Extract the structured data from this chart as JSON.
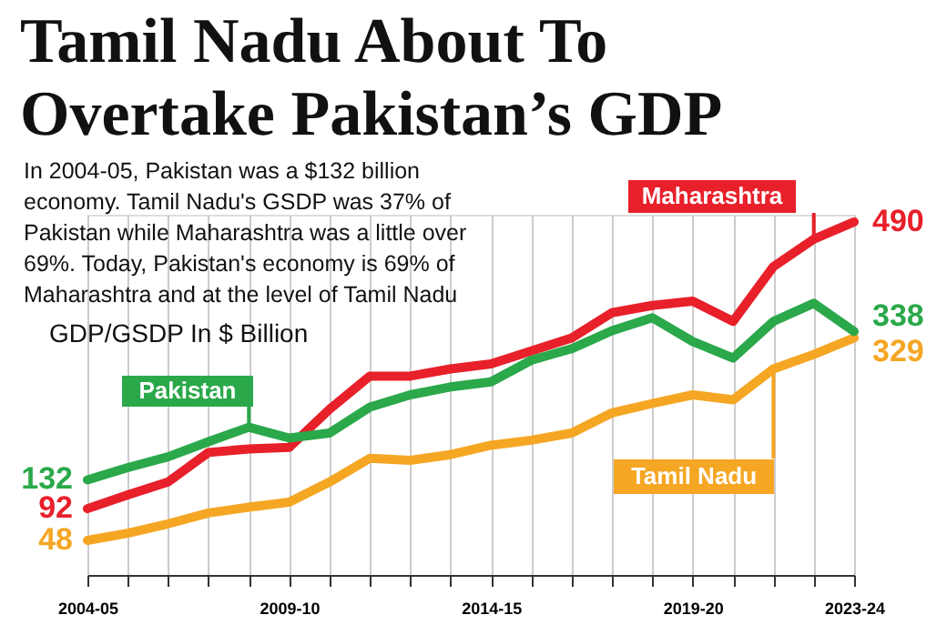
{
  "chart_data": {
    "type": "line",
    "title": "Tamil Nadu About To\nOvertake Pakistan’s GDP",
    "subtitle": "In 2004-05, Pakistan was a $132 billion\neconomy. Tamil Nadu's GSDP was 37% of\nPakistan while Maharashtra was a little over\n69%. Today, Pakistan's economy is 69% of\nMaharashtra and at the level of Tamil Nadu",
    "ylabel": "GDP/GSDP In $ Billion",
    "categories": [
      "2004-05",
      null,
      null,
      null,
      null,
      "2009-10",
      null,
      null,
      null,
      null,
      "2014-15",
      null,
      null,
      null,
      null,
      "2019-20",
      null,
      null,
      null,
      "2023-24"
    ],
    "series": [
      {
        "name": "Pakistan",
        "color": "#2aa84a",
        "values": [
          132,
          149,
          164,
          185,
          205,
          190,
          197,
          233,
          250,
          261,
          268,
          298,
          314,
          339,
          357,
          324,
          301,
          352,
          377,
          338
        ],
        "value_labels": [
          "132",
          null,
          null,
          null,
          null,
          null,
          null,
          null,
          null,
          null,
          null,
          null,
          null,
          null,
          null,
          null,
          null,
          null,
          null,
          "338"
        ]
      },
      {
        "name": "Maharashtra",
        "color": "#e8202a",
        "values": [
          92,
          111,
          129,
          170,
          175,
          177,
          230,
          276,
          276,
          286,
          293,
          311,
          329,
          364,
          374,
          380,
          352,
          428,
          466,
          490
        ],
        "value_labels": [
          "92",
          null,
          null,
          null,
          null,
          null,
          null,
          null,
          null,
          null,
          null,
          null,
          null,
          null,
          null,
          null,
          null,
          null,
          null,
          "490"
        ]
      },
      {
        "name": "Tamil Nadu",
        "color": "#f5a623",
        "values": [
          48,
          58,
          71,
          86,
          94,
          101,
          129,
          162,
          159,
          167,
          180,
          187,
          197,
          225,
          238,
          250,
          243,
          286,
          306,
          329
        ],
        "value_labels": [
          "48",
          null,
          null,
          null,
          null,
          null,
          null,
          null,
          null,
          null,
          null,
          null,
          null,
          null,
          null,
          null,
          null,
          null,
          null,
          "329"
        ]
      }
    ],
    "ylim": [
      0,
      500
    ],
    "grid": "x",
    "tick_labels": "x",
    "line_style": "solid"
  }
}
